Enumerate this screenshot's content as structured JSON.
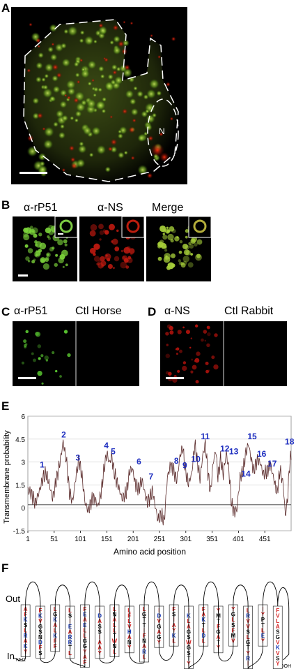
{
  "panels": {
    "a": {
      "letter": "A",
      "nucleus_label": "N"
    },
    "b": {
      "letter": "B",
      "labels": [
        "α-rP51",
        "α-NS",
        "Merge"
      ]
    },
    "c": {
      "letter": "C",
      "labels": [
        "α-rP51",
        "Ctl Horse"
      ]
    },
    "d": {
      "letter": "D",
      "labels": [
        "α-NS",
        "Ctl Rabbit"
      ]
    },
    "e": {
      "letter": "E"
    },
    "f": {
      "letter": "F",
      "out_label": "Out",
      "in_label": "In",
      "nterm": "NH2",
      "cterm": "COOH"
    }
  },
  "chart_data": {
    "type": "line",
    "title": "",
    "xlabel": "Amino acid position",
    "ylabel": "Transmembrane probability",
    "xlim": [
      1,
      501
    ],
    "ylim": [
      -1.5,
      6
    ],
    "x_ticks": [
      "1",
      "51",
      "101",
      "151",
      "201",
      "251",
      "301",
      "351",
      "401",
      "451"
    ],
    "y_ticks": [
      "-1.5",
      "0",
      "1.5",
      "3",
      "4.5",
      "6"
    ],
    "threshold": 0.2,
    "grid": true,
    "series_profile": [
      [
        1,
        1.2
      ],
      [
        8,
        0.9
      ],
      [
        15,
        0.3
      ],
      [
        22,
        1.0
      ],
      [
        30,
        2.0
      ],
      [
        36,
        2.3
      ],
      [
        42,
        1.5
      ],
      [
        48,
        0.6
      ],
      [
        55,
        1.8
      ],
      [
        62,
        3.0
      ],
      [
        68,
        4.3
      ],
      [
        74,
        3.2
      ],
      [
        80,
        1.0
      ],
      [
        86,
        0.4
      ],
      [
        92,
        2.0
      ],
      [
        98,
        3.2
      ],
      [
        104,
        2.0
      ],
      [
        110,
        0.3
      ],
      [
        116,
        -0.2
      ],
      [
        122,
        0.5
      ],
      [
        128,
        0.6
      ],
      [
        134,
        0.1
      ],
      [
        140,
        1.0
      ],
      [
        146,
        2.6
      ],
      [
        151,
        3.6
      ],
      [
        156,
        2.9
      ],
      [
        160,
        3.4
      ],
      [
        165,
        2.3
      ],
      [
        172,
        1.5
      ],
      [
        180,
        0.6
      ],
      [
        188,
        1.0
      ],
      [
        195,
        2.5
      ],
      [
        200,
        2.5
      ],
      [
        206,
        1.4
      ],
      [
        212,
        1.3
      ],
      [
        218,
        1.8
      ],
      [
        223,
        1.0
      ],
      [
        228,
        0.3
      ],
      [
        233,
        0.7
      ],
      [
        238,
        1.1
      ],
      [
        243,
        0.1
      ],
      [
        248,
        -0.8
      ],
      [
        254,
        -0.4
      ],
      [
        260,
        -0.9
      ],
      [
        266,
        2.0
      ],
      [
        272,
        2.8
      ],
      [
        278,
        2.4
      ],
      [
        284,
        1.8
      ],
      [
        290,
        3.4
      ],
      [
        295,
        4.0
      ],
      [
        300,
        2.5
      ],
      [
        306,
        1.6
      ],
      [
        312,
        2.2
      ],
      [
        318,
        4.2
      ],
      [
        323,
        3.0
      ],
      [
        328,
        1.9
      ],
      [
        333,
        3.4
      ],
      [
        338,
        4.2
      ],
      [
        343,
        2.3
      ],
      [
        348,
        1.0
      ],
      [
        353,
        3.0
      ],
      [
        358,
        3.8
      ],
      [
        362,
        2.0
      ],
      [
        367,
        3.2
      ],
      [
        372,
        2.2
      ],
      [
        378,
        3.6
      ],
      [
        383,
        2.4
      ],
      [
        388,
        0.2
      ],
      [
        393,
        -0.3
      ],
      [
        398,
        -0.1
      ],
      [
        404,
        2.0
      ],
      [
        410,
        2.5
      ],
      [
        415,
        3.6
      ],
      [
        420,
        4.2
      ],
      [
        425,
        3.2
      ],
      [
        430,
        2.4
      ],
      [
        436,
        3.1
      ],
      [
        442,
        3.0
      ],
      [
        448,
        2.2
      ],
      [
        455,
        2.4
      ],
      [
        462,
        2.8
      ],
      [
        468,
        1.9
      ],
      [
        474,
        1.0
      ],
      [
        480,
        2.5
      ],
      [
        486,
        1.5
      ],
      [
        490,
        -0.5
      ],
      [
        494,
        0.5
      ],
      [
        498,
        2.8
      ],
      [
        501,
        3.4
      ]
    ],
    "helix_markers": [
      {
        "n": "1",
        "x": 28,
        "y": 2.65
      },
      {
        "n": "2",
        "x": 69,
        "y": 4.6
      },
      {
        "n": "3",
        "x": 96,
        "y": 3.1
      },
      {
        "n": "4",
        "x": 150,
        "y": 3.9
      },
      {
        "n": "5",
        "x": 163,
        "y": 3.5
      },
      {
        "n": "6",
        "x": 212,
        "y": 2.85
      },
      {
        "n": "7",
        "x": 235,
        "y": 1.85
      },
      {
        "n": "8",
        "x": 283,
        "y": 2.9
      },
      {
        "n": "9",
        "x": 299,
        "y": 2.6
      },
      {
        "n": "10",
        "x": 320,
        "y": 3.0
      },
      {
        "n": "11",
        "x": 338,
        "y": 4.5
      },
      {
        "n": "12",
        "x": 375,
        "y": 3.7
      },
      {
        "n": "13",
        "x": 392,
        "y": 3.5
      },
      {
        "n": "14",
        "x": 415,
        "y": 2.05
      },
      {
        "n": "15",
        "x": 427,
        "y": 4.5
      },
      {
        "n": "16",
        "x": 445,
        "y": 3.35
      },
      {
        "n": "17",
        "x": 465,
        "y": 2.7
      },
      {
        "n": "18",
        "x": 498,
        "y": 4.15
      }
    ]
  },
  "helices": [
    {
      "n": "1",
      "seq": [
        [
          "A",
          "r"
        ],
        [
          "F",
          "r"
        ],
        [
          "K",
          "b"
        ],
        [
          "S",
          "k"
        ],
        [
          "L",
          "r"
        ],
        [
          "R",
          "b"
        ],
        [
          "A",
          "r"
        ],
        [
          "K",
          "b"
        ],
        [
          "Y",
          "r"
        ]
      ]
    },
    {
      "n": "2",
      "seq": [
        [
          "F",
          "r"
        ],
        [
          "K",
          "b"
        ],
        [
          "V",
          "r"
        ],
        [
          "G",
          "k"
        ],
        [
          "S",
          "k"
        ],
        [
          "N",
          "k"
        ],
        [
          "D",
          "b"
        ],
        [
          "F",
          "r"
        ],
        [
          "S",
          "k"
        ]
      ]
    },
    {
      "n": "3",
      "seq": [
        [
          "L",
          "r"
        ],
        [
          "G",
          "k"
        ],
        [
          "K",
          "b"
        ],
        [
          "A",
          "r"
        ],
        [
          "L",
          "r"
        ],
        [
          "K",
          "b"
        ],
        [
          "F",
          "r"
        ],
        [
          "F",
          "r"
        ]
      ]
    },
    {
      "n": "4",
      "seq": [
        [
          "L",
          "r"
        ],
        [
          "S",
          "k"
        ],
        [
          "I",
          "r"
        ],
        [
          "E",
          "b"
        ],
        [
          "A",
          "r"
        ],
        [
          "R",
          "b"
        ],
        [
          "R",
          "b"
        ],
        [
          "T",
          "k"
        ],
        [
          "L",
          "r"
        ]
      ]
    },
    {
      "n": "5",
      "seq": [
        [
          "F",
          "r"
        ],
        [
          "E",
          "b"
        ],
        [
          "A",
          "r"
        ],
        [
          "E",
          "b"
        ],
        [
          "L",
          "r"
        ],
        [
          "L",
          "r"
        ],
        [
          "G",
          "k"
        ],
        [
          "G",
          "k"
        ],
        [
          "Y",
          "r"
        ],
        [
          "A",
          "r"
        ],
        [
          "F",
          "r"
        ]
      ]
    },
    {
      "n": "6",
      "seq": [
        [
          "I",
          "r"
        ],
        [
          "D",
          "b"
        ],
        [
          "A",
          "r"
        ],
        [
          "S",
          "k"
        ],
        [
          "S",
          "k"
        ],
        [
          "I",
          "r"
        ],
        [
          "A",
          "r"
        ],
        [
          "A",
          "r"
        ],
        [
          "Y",
          "r"
        ]
      ]
    },
    {
      "n": "7",
      "seq": [
        [
          "L",
          "r"
        ],
        [
          "N",
          "k"
        ],
        [
          "A",
          "r"
        ],
        [
          "L",
          "r"
        ],
        [
          "L",
          "r"
        ],
        [
          "T",
          "k"
        ],
        [
          "W",
          "r"
        ],
        [
          "N",
          "k"
        ],
        [
          "L",
          "r"
        ]
      ]
    },
    {
      "n": "8",
      "seq": [
        [
          "L",
          "r"
        ],
        [
          "F",
          "r"
        ],
        [
          "L",
          "r"
        ],
        [
          "V",
          "r"
        ],
        [
          "H",
          "b"
        ],
        [
          "A",
          "r"
        ],
        [
          "N",
          "k"
        ],
        [
          "Y",
          "r"
        ]
      ]
    },
    {
      "n": "9",
      "seq": [
        [
          "L",
          "r"
        ],
        [
          "G",
          "k"
        ],
        [
          "T",
          "k"
        ],
        [
          "T",
          "k"
        ],
        [
          "I",
          "r"
        ],
        [
          "F",
          "r"
        ],
        [
          "N",
          "k"
        ],
        [
          "A",
          "r"
        ],
        [
          "R",
          "b"
        ],
        [
          "L",
          "r"
        ]
      ]
    },
    {
      "n": "10",
      "seq": [
        [
          "I",
          "r"
        ],
        [
          "D",
          "b"
        ],
        [
          "V",
          "r"
        ],
        [
          "G",
          "k"
        ],
        [
          "A",
          "r"
        ],
        [
          "G",
          "k"
        ],
        [
          "Y",
          "r"
        ]
      ]
    },
    {
      "n": "11",
      "seq": [
        [
          "F",
          "r"
        ],
        [
          "S",
          "k"
        ],
        [
          "I",
          "r"
        ],
        [
          "A",
          "r"
        ],
        [
          "Y",
          "r"
        ],
        [
          "K",
          "b"
        ],
        [
          "L",
          "r"
        ]
      ]
    },
    {
      "n": "12",
      "seq": [
        [
          "I",
          "r"
        ],
        [
          "K",
          "b"
        ],
        [
          "L",
          "r"
        ],
        [
          "A",
          "r"
        ],
        [
          "G",
          "k"
        ],
        [
          "S",
          "k"
        ],
        [
          "W",
          "r"
        ],
        [
          "G",
          "k"
        ],
        [
          "S",
          "k"
        ],
        [
          "T",
          "k"
        ],
        [
          "Y",
          "r"
        ]
      ]
    },
    {
      "n": "13",
      "seq": [
        [
          "F",
          "r"
        ],
        [
          "A",
          "r"
        ],
        [
          "K",
          "b"
        ],
        [
          "T",
          "k"
        ],
        [
          "L",
          "r"
        ],
        [
          "D",
          "b"
        ],
        [
          "L",
          "r"
        ]
      ]
    },
    {
      "n": "14",
      "seq": [
        [
          "Y",
          "r"
        ],
        [
          "M",
          "k"
        ],
        [
          "T",
          "k"
        ],
        [
          "F",
          "r"
        ],
        [
          "G",
          "k"
        ],
        [
          "A",
          "r"
        ],
        [
          "T",
          "k"
        ],
        [
          "Y",
          "r"
        ]
      ]
    },
    {
      "n": "15",
      "seq": [
        [
          "Y",
          "r"
        ],
        [
          "G",
          "k"
        ],
        [
          "L",
          "r"
        ],
        [
          "S",
          "k"
        ],
        [
          "F",
          "r"
        ],
        [
          "M",
          "k"
        ],
        [
          "V",
          "r"
        ]
      ]
    },
    {
      "n": "16",
      "seq": [
        [
          "L",
          "r"
        ],
        [
          "R",
          "b"
        ],
        [
          "V",
          "r"
        ],
        [
          "V",
          "r"
        ],
        [
          "S",
          "k"
        ],
        [
          "L",
          "r"
        ],
        [
          "G",
          "k"
        ],
        [
          "T",
          "k"
        ],
        [
          "Y",
          "r"
        ],
        [
          "R",
          "b"
        ],
        [
          "I",
          "r"
        ]
      ]
    },
    {
      "n": "17",
      "seq": [
        [
          "I",
          "r"
        ],
        [
          "Y",
          "r"
        ],
        [
          "P",
          "k"
        ],
        [
          "T",
          "k"
        ],
        [
          "L",
          "r"
        ],
        [
          "E",
          "b"
        ],
        [
          "Y",
          "r"
        ]
      ]
    },
    {
      "n": "18",
      "seq": [
        [
          "F",
          "r"
        ],
        [
          "V",
          "r"
        ],
        [
          "L",
          "r"
        ],
        [
          "A",
          "r"
        ],
        [
          "S",
          "k"
        ],
        [
          "G",
          "k"
        ],
        [
          "V",
          "r"
        ],
        [
          "K",
          "b"
        ],
        [
          "V",
          "r"
        ],
        [
          "S",
          "k"
        ],
        [
          "Y",
          "r"
        ]
      ]
    }
  ],
  "colors": {
    "hydrophobic": "#d42424",
    "charged": "#1f3fb8",
    "neutral": "#111111",
    "series": "#5a2a2a",
    "marker": "#1f2fc0"
  }
}
